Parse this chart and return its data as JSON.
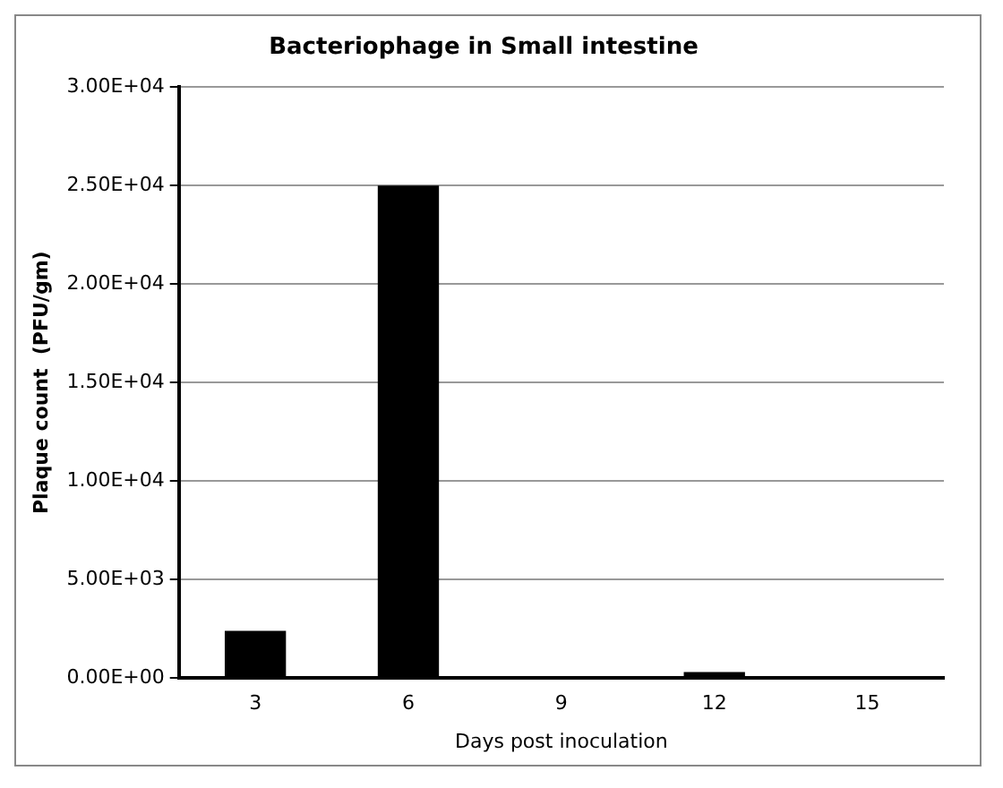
{
  "chart_data": {
    "type": "bar",
    "title": "Bacteriophage in Small intestine",
    "xlabel": "Days post inoculation",
    "ylabel": "Plaque count  (PFU/gm)",
    "categories": [
      "3",
      "6",
      "9",
      "12",
      "15"
    ],
    "values": [
      2400,
      25000,
      0,
      300,
      0
    ],
    "color": "#000000",
    "ylim": [
      0,
      30000
    ],
    "yticks": [
      {
        "value": 0,
        "label": "0.00E+00"
      },
      {
        "value": 5000,
        "label": "5.00E+03"
      },
      {
        "value": 10000,
        "label": "1.00E+04"
      },
      {
        "value": 15000,
        "label": "1.50E+04"
      },
      {
        "value": 20000,
        "label": "2.00E+04"
      },
      {
        "value": 25000,
        "label": "2.50E+04"
      },
      {
        "value": 30000,
        "label": "3.00E+04"
      }
    ],
    "grid": "y",
    "legend": false
  }
}
